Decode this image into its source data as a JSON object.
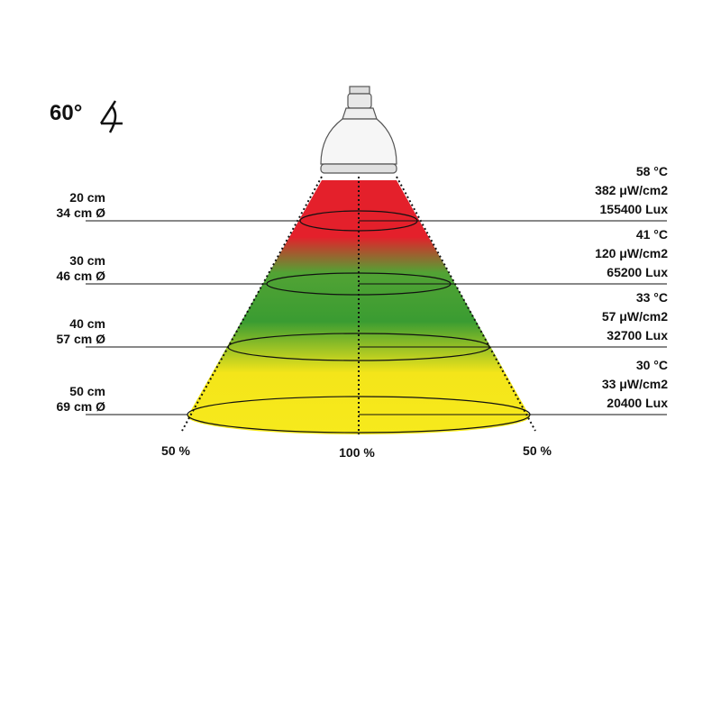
{
  "angle": "60°",
  "levels": [
    {
      "distance": "20 cm",
      "diameter": "34 cm Ø",
      "temperature": "58 °C",
      "irradiance": "382 μW/cm2",
      "lux": "155400 Lux"
    },
    {
      "distance": "30 cm",
      "diameter": "46 cm Ø",
      "temperature": "41 °C",
      "irradiance": "120 μW/cm2",
      "lux": "65200 Lux"
    },
    {
      "distance": "40 cm",
      "diameter": "57 cm Ø",
      "temperature": "33 °C",
      "irradiance": "57 μW/cm2",
      "lux": "32700 Lux"
    },
    {
      "distance": "50 cm",
      "diameter": "69 cm Ø",
      "temperature": "30 °C",
      "irradiance": "33 μW/cm2",
      "lux": "20400 Lux"
    }
  ],
  "edge_labels": {
    "left": "50 %",
    "center": "100 %",
    "right": "50 %"
  }
}
